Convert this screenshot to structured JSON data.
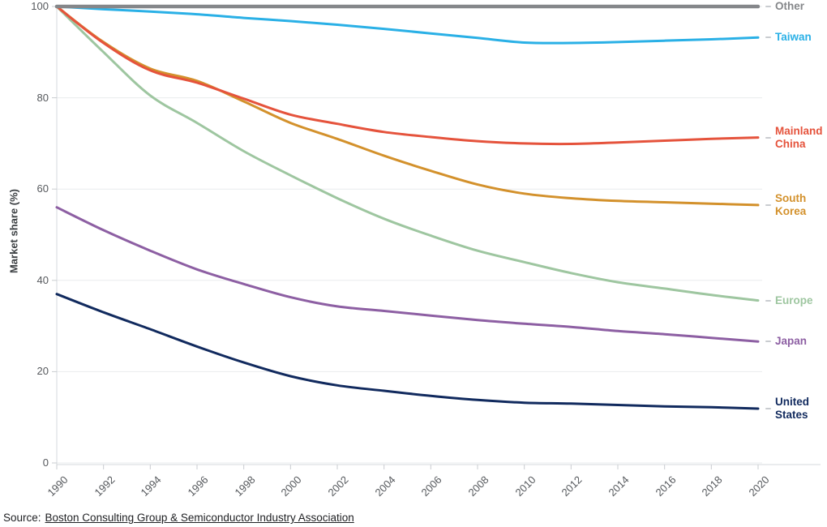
{
  "axes": {
    "y_title": "Market share (%)",
    "y_ticks": [
      0,
      20,
      40,
      60,
      80,
      100
    ],
    "x_ticks": [
      1990,
      1992,
      1994,
      1996,
      1998,
      2000,
      2002,
      2004,
      2006,
      2008,
      2010,
      2012,
      2014,
      2016,
      2018,
      2020
    ]
  },
  "source": {
    "prefix": "Source:",
    "link_text": "Boston Consulting Group & Semiconductor Industry Association"
  },
  "chart_data": {
    "type": "line",
    "title": "",
    "xlabel": "",
    "ylabel": "Market share (%)",
    "ylim": [
      0,
      100
    ],
    "grid": true,
    "legend_position": "right-end-labels",
    "x": [
      1990,
      1992,
      1994,
      1996,
      1998,
      2000,
      2002,
      2004,
      2006,
      2008,
      2010,
      2012,
      2014,
      2016,
      2018,
      2020
    ],
    "series": [
      {
        "name": "Other",
        "label": "Other",
        "color": "#85878a",
        "values": [
          100,
          100,
          100,
          100,
          100,
          100,
          100,
          100,
          100,
          100,
          100,
          100,
          100,
          100,
          100,
          100
        ]
      },
      {
        "name": "Taiwan",
        "label": "Taiwan",
        "color": "#2ab0e6",
        "values": [
          100,
          99.4,
          98.9,
          98.3,
          97.5,
          96.8,
          96.0,
          95.1,
          94.1,
          93.1,
          92.1,
          92.0,
          92.2,
          92.5,
          92.8,
          93.2
        ]
      },
      {
        "name": "Mainland China",
        "label": "Mainland\nChina",
        "color": "#e5533c",
        "values": [
          100,
          92.0,
          86.0,
          83.3,
          79.8,
          76.3,
          74.3,
          72.5,
          71.4,
          70.5,
          70.0,
          69.9,
          70.2,
          70.6,
          71.0,
          71.3
        ]
      },
      {
        "name": "South Korea",
        "label": "South\nKorea",
        "color": "#d3912c",
        "values": [
          100,
          92.2,
          86.4,
          83.7,
          79.2,
          74.5,
          71.0,
          67.3,
          64.0,
          61.0,
          59.0,
          58.0,
          57.4,
          57.1,
          56.8,
          56.5
        ]
      },
      {
        "name": "Europe",
        "label": "Europe",
        "color": "#9ec6a0",
        "values": [
          100,
          90.0,
          80.5,
          74.5,
          68.3,
          63.0,
          58.0,
          53.5,
          49.8,
          46.5,
          44.0,
          41.6,
          39.6,
          38.2,
          36.8,
          35.6
        ]
      },
      {
        "name": "Japan",
        "label": "Japan",
        "color": "#8d5fa3",
        "values": [
          56.0,
          51.0,
          46.5,
          42.4,
          39.2,
          36.3,
          34.3,
          33.3,
          32.3,
          31.3,
          30.5,
          29.8,
          28.9,
          28.2,
          27.4,
          26.6
        ]
      },
      {
        "name": "United States",
        "label": "United\nStates",
        "color": "#112a5e",
        "values": [
          37.0,
          33.0,
          29.3,
          25.5,
          22.0,
          19.0,
          17.0,
          15.8,
          14.7,
          13.8,
          13.2,
          13.0,
          12.7,
          12.4,
          12.2,
          11.9
        ]
      }
    ]
  }
}
